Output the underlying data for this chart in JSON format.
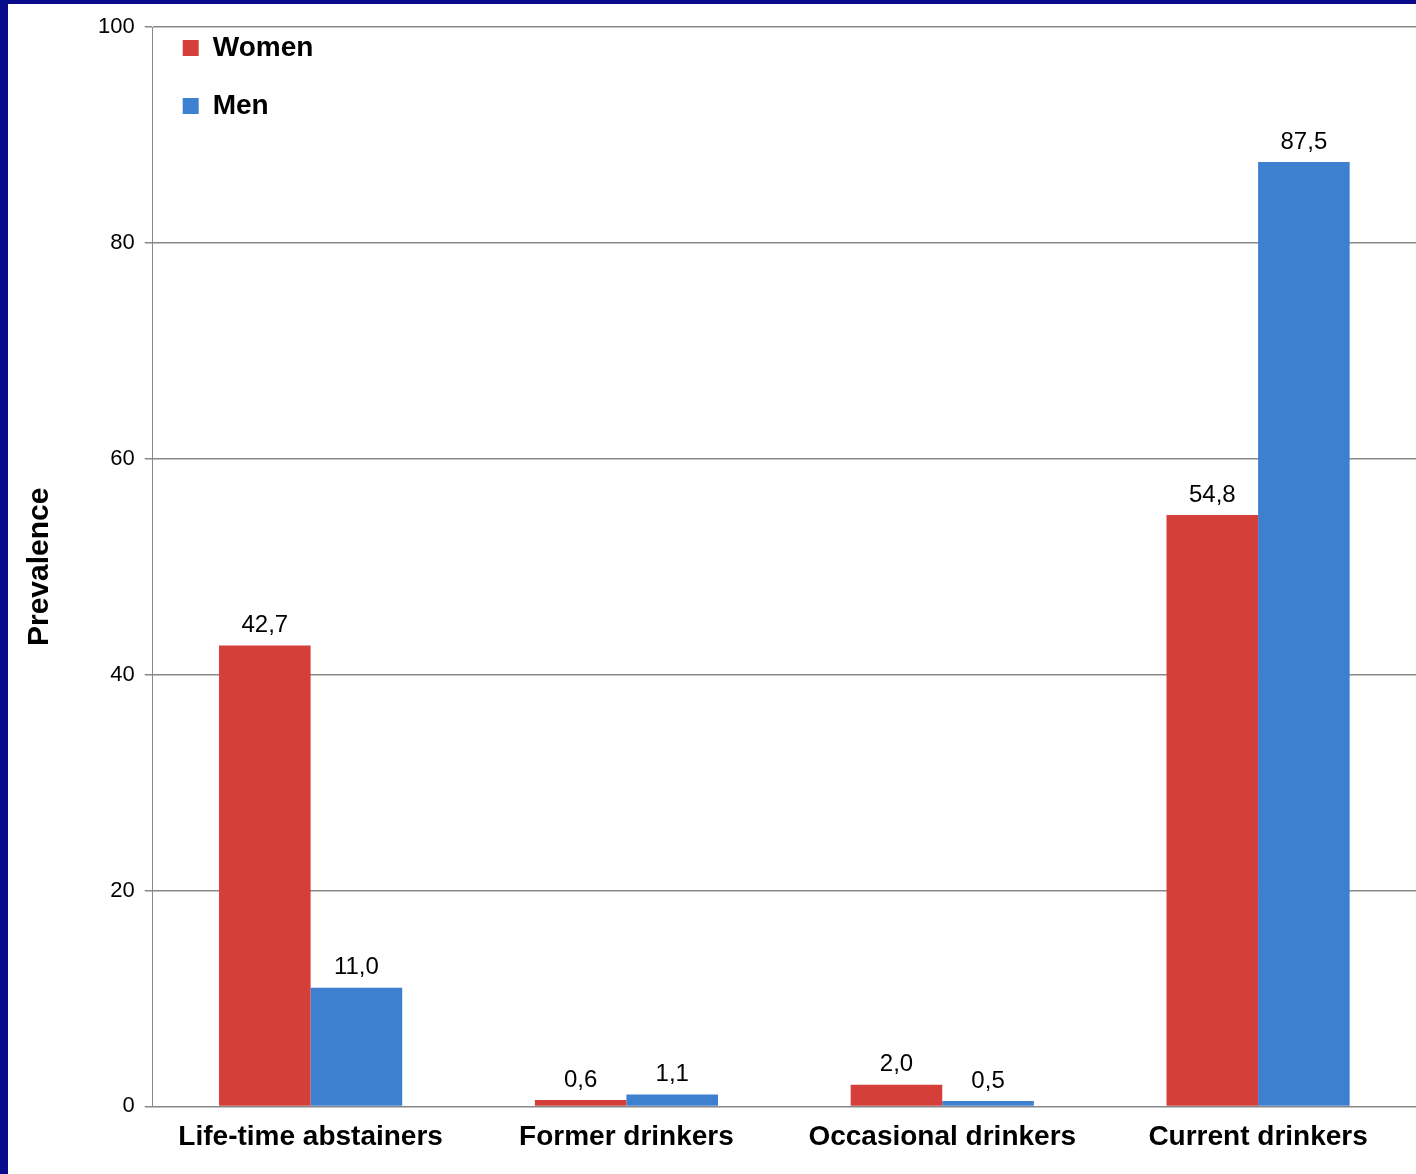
{
  "chart_data": {
    "type": "bar",
    "ylabel": "Prevalence",
    "categories": [
      "Life-time abstainers",
      "Former drinkers",
      "Occasional drinkers",
      "Current drinkers"
    ],
    "series": [
      {
        "name": "Women",
        "color": "#d43f3a",
        "values": [
          42.7,
          0.6,
          2.0,
          54.8
        ],
        "value_labels": [
          "42,7",
          "0,6",
          "2,0",
          "54,8"
        ]
      },
      {
        "name": "Men",
        "color": "#3d80d0",
        "values": [
          11.0,
          1.1,
          0.5,
          87.5
        ],
        "value_labels": [
          "11,0",
          "1,1",
          "0,5",
          "87,5"
        ]
      }
    ],
    "ylim": [
      0,
      100
    ],
    "yticks": [
      0,
      20,
      40,
      60,
      80,
      100
    ],
    "grid": "y",
    "legend": "top left"
  }
}
